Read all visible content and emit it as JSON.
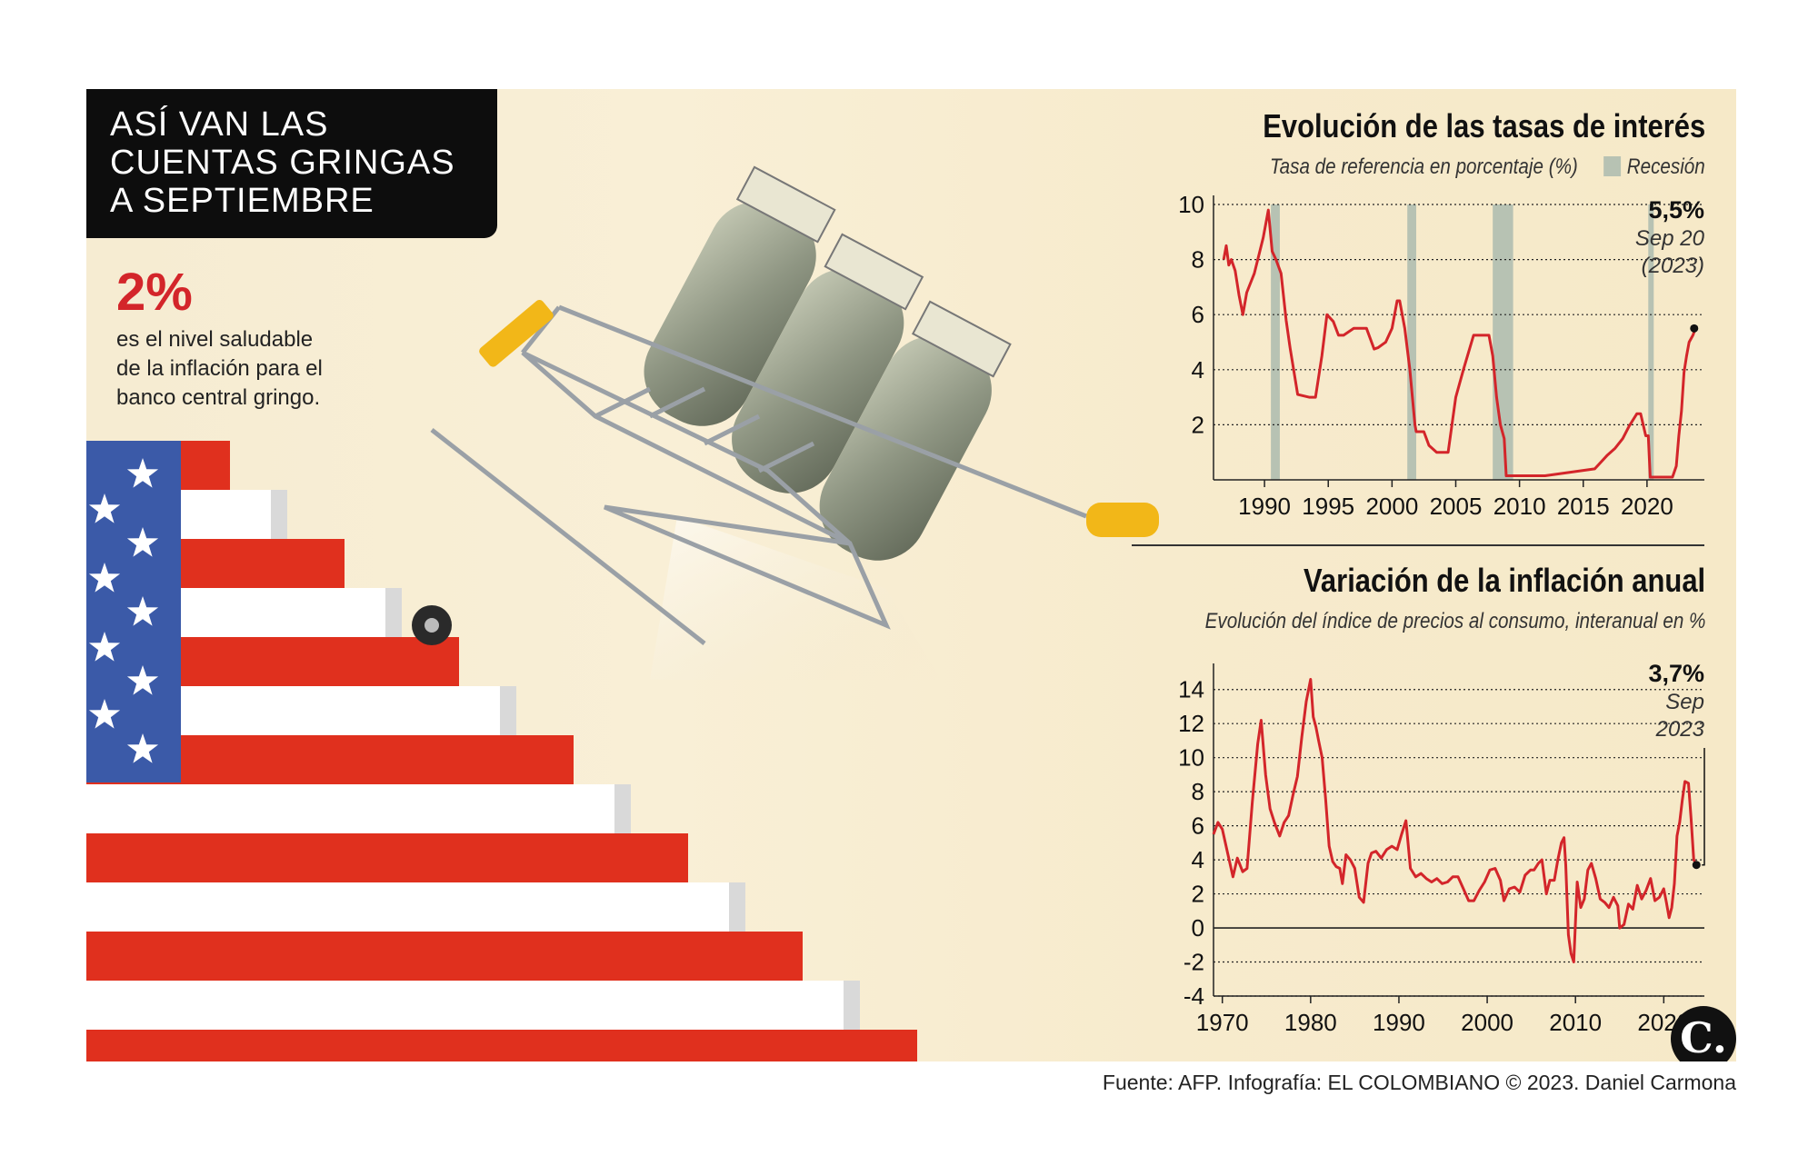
{
  "headline": [
    "ASÍ VAN LAS",
    "CUENTAS GRINGAS",
    "A SEPTIEMBRE"
  ],
  "highlight": {
    "value": "2%",
    "text": [
      "es el nivel saludable",
      "de la inflación para el",
      "banco central gringo."
    ]
  },
  "colors": {
    "accent_red": "#d3252a",
    "flag_blue": "#3b5aa8",
    "line": "#d3252a",
    "recession": "#b7c2b3"
  },
  "source": "Fuente: AFP. Infografía: EL COLOMBIANO © 2023. Daniel Carmona",
  "logo": "C.",
  "chart_data": [
    {
      "type": "line",
      "title": "Evolución de las tasas de interés",
      "subtitle": "Tasa de referencia en porcentaje (%)",
      "legend": [
        "Recesión"
      ],
      "xticks": [
        "1990",
        "1995",
        "2000",
        "2005",
        "2010",
        "2015",
        "2020"
      ],
      "yticks": [
        "2",
        "4",
        "6",
        "8",
        "10"
      ],
      "xlim": [
        1986,
        2024.5
      ],
      "ylim": [
        0,
        10
      ],
      "grid": "horizontal dotted",
      "recessions": [
        [
          1990.5,
          1991.2
        ],
        [
          2001.2,
          2001.9
        ],
        [
          2007.9,
          2009.5
        ],
        [
          2020.1,
          2020.4
        ]
      ],
      "annotation": {
        "value": "5,5%",
        "lines": [
          "Sep 20",
          "(2023)"
        ],
        "point": [
          2023.7,
          5.5
        ]
      },
      "series": [
        {
          "x": [
            1986.8,
            1987.0,
            1987.2,
            1987.4,
            1987.7,
            1988.0,
            1988.3,
            1988.6,
            1989.2,
            1989.9,
            1990.3,
            1990.6,
            1990.9,
            1991.3,
            1991.7,
            1992.0,
            1992.6,
            1993.5,
            1994.0,
            1994.5,
            1994.9,
            1995.4,
            1995.8,
            1996.2,
            1997.0,
            1998.0,
            1998.6,
            1998.9,
            1999.5,
            2000.0,
            2000.4,
            2000.6,
            2001.0,
            2001.4,
            2001.8,
            2001.9,
            2002.5,
            2002.9,
            2003.5,
            2004.4,
            2005.0,
            2005.6,
            2006.4,
            2007.6,
            2007.9,
            2008.2,
            2008.5,
            2008.8,
            2008.96,
            2009.5,
            2012.0,
            2015.9,
            2016.9,
            2017.5,
            2018.1,
            2018.6,
            2019.2,
            2019.5,
            2019.9,
            2020.1,
            2020.25,
            2022.0,
            2022.3,
            2022.5,
            2022.7,
            2022.9,
            2023.1,
            2023.3,
            2023.6,
            2023.8
          ],
          "y": [
            8.0,
            8.5,
            7.8,
            8.0,
            7.6,
            6.7,
            6.0,
            6.8,
            7.5,
            8.8,
            9.8,
            8.3,
            8.0,
            7.5,
            5.8,
            4.8,
            3.1,
            3.0,
            3.0,
            4.5,
            6.0,
            5.75,
            5.25,
            5.25,
            5.5,
            5.5,
            4.75,
            4.8,
            5.0,
            5.5,
            6.5,
            6.5,
            5.5,
            4.0,
            2.0,
            1.75,
            1.75,
            1.25,
            1.0,
            1.0,
            3.0,
            4.0,
            5.25,
            5.25,
            4.5,
            3.0,
            2.0,
            1.5,
            0.15,
            0.15,
            0.15,
            0.4,
            0.9,
            1.15,
            1.5,
            1.95,
            2.4,
            2.4,
            1.6,
            1.6,
            0.1,
            0.1,
            0.5,
            1.6,
            2.5,
            3.9,
            4.5,
            5.0,
            5.25,
            5.5
          ]
        }
      ]
    },
    {
      "type": "line",
      "title": "Variación de la inflación anual",
      "subtitle": "Evolución del índice de precios al consumo, interanual en %",
      "xticks": [
        "1970",
        "1980",
        "1990",
        "2000",
        "2010",
        "2020"
      ],
      "yticks": [
        "-4",
        "-2",
        "0",
        "2",
        "4",
        "6",
        "8",
        "10",
        "12",
        "14"
      ],
      "xlim": [
        1969,
        2024.6
      ],
      "ylim": [
        -4,
        15
      ],
      "grid": "horizontal dotted",
      "annotation": {
        "value": "3,7%",
        "lines": [
          "Sep",
          "2023"
        ],
        "point": [
          2023.7,
          3.7
        ]
      },
      "series": [
        {
          "x": [
            1969.0,
            1969.5,
            1970.0,
            1970.6,
            1971.2,
            1971.7,
            1972.3,
            1972.8,
            1973.4,
            1974.0,
            1974.4,
            1974.9,
            1975.4,
            1975.9,
            1976.5,
            1977.0,
            1977.5,
            1978.0,
            1978.5,
            1979.0,
            1979.5,
            1980.0,
            1980.3,
            1980.6,
            1980.9,
            1981.3,
            1981.7,
            1982.1,
            1982.5,
            1982.9,
            1983.3,
            1983.6,
            1984.0,
            1984.5,
            1985.0,
            1985.5,
            1986.0,
            1986.5,
            1986.9,
            1987.4,
            1988.0,
            1988.6,
            1989.2,
            1989.8,
            1990.3,
            1990.8,
            1991.3,
            1991.9,
            1992.5,
            1993.1,
            1993.7,
            1994.3,
            1994.9,
            1995.5,
            1996.1,
            1996.7,
            1997.3,
            1997.9,
            1998.5,
            1999.1,
            1999.7,
            2000.3,
            2000.9,
            2001.5,
            2001.9,
            2002.5,
            2003.1,
            2003.7,
            2004.3,
            2004.9,
            2005.3,
            2005.8,
            2006.2,
            2006.7,
            2007.1,
            2007.6,
            2008.0,
            2008.4,
            2008.7,
            2008.9,
            2009.2,
            2009.5,
            2009.8,
            2010.2,
            2010.6,
            2011.0,
            2011.4,
            2011.8,
            2012.3,
            2012.8,
            2013.3,
            2013.8,
            2014.3,
            2014.8,
            2015.0,
            2015.5,
            2016.0,
            2016.5,
            2017.0,
            2017.5,
            2018.0,
            2018.5,
            2019.0,
            2019.5,
            2020.0,
            2020.3,
            2020.6,
            2020.9,
            2021.2,
            2021.5,
            2021.8,
            2022.1,
            2022.4,
            2022.8,
            2023.1,
            2023.4,
            2023.7
          ],
          "y": [
            5.5,
            6.2,
            5.8,
            4.4,
            3.0,
            4.1,
            3.3,
            3.5,
            7.4,
            10.8,
            12.2,
            9.0,
            7.0,
            6.2,
            5.4,
            6.2,
            6.6,
            7.8,
            8.9,
            11.2,
            13.3,
            14.6,
            12.4,
            11.8,
            11.0,
            10.0,
            7.6,
            4.8,
            3.9,
            3.6,
            3.5,
            2.6,
            4.3,
            4.0,
            3.5,
            1.8,
            1.5,
            3.8,
            4.4,
            4.5,
            4.1,
            4.6,
            4.8,
            4.6,
            5.5,
            6.3,
            3.5,
            3.0,
            3.2,
            2.9,
            2.7,
            2.9,
            2.6,
            2.7,
            3.0,
            3.0,
            2.3,
            1.6,
            1.6,
            2.2,
            2.7,
            3.4,
            3.5,
            2.8,
            1.6,
            2.3,
            2.4,
            2.1,
            3.1,
            3.4,
            3.4,
            3.8,
            4.0,
            2.0,
            2.8,
            2.8,
            4.0,
            5.0,
            5.3,
            3.7,
            -0.4,
            -1.5,
            -2.0,
            2.7,
            1.2,
            1.7,
            3.4,
            3.8,
            2.9,
            1.7,
            1.5,
            1.2,
            1.8,
            1.3,
            0.0,
            0.2,
            1.4,
            1.1,
            2.5,
            1.7,
            2.2,
            2.9,
            1.6,
            1.8,
            2.3,
            1.5,
            0.6,
            1.2,
            2.6,
            5.4,
            6.2,
            7.5,
            8.6,
            8.5,
            6.4,
            4.0,
            3.7
          ]
        }
      ]
    }
  ]
}
